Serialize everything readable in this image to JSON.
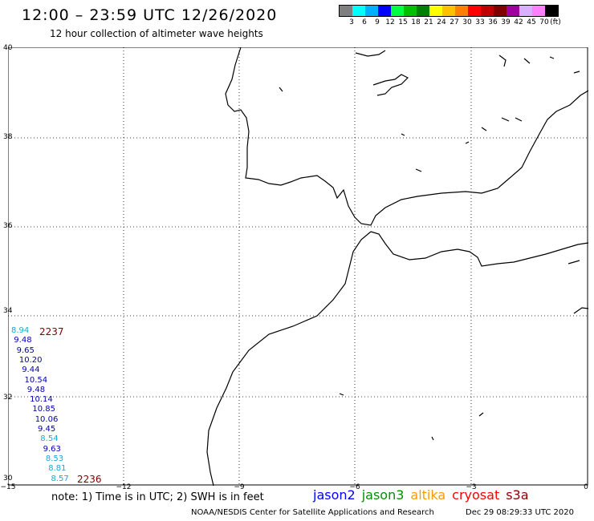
{
  "title": "12:00  –  23:59  UTC  12/26/2020",
  "subtitle": "12 hour collection of altimeter wave heights",
  "legend": {
    "unit": "(ft)",
    "colors": [
      "#7f7f7f",
      "#00ffff",
      "#00b0ff",
      "#0000ff",
      "#00ff40",
      "#00c000",
      "#008000",
      "#ffff00",
      "#ffc000",
      "#ff8000",
      "#ff0000",
      "#c00000",
      "#800000",
      "#a000a0",
      "#d8b0ff",
      "#ff80ff",
      "#000000"
    ],
    "labels": [
      "3",
      "6",
      "9",
      "12",
      "15",
      "18",
      "21",
      "24",
      "27",
      "30",
      "33",
      "36",
      "39",
      "42",
      "45",
      "70"
    ]
  },
  "axes": {
    "lat_labels": [
      "40",
      "38",
      "36",
      "34",
      "32",
      "30"
    ],
    "lon_labels": [
      "−15",
      "−12",
      "−9",
      "−6",
      "−3",
      "0"
    ]
  },
  "track": {
    "times": [
      "2237",
      "2236"
    ],
    "values": [
      {
        "v": "8.94",
        "c": "#1ea6d6"
      },
      {
        "v": "9.48",
        "c": "#0000b0"
      },
      {
        "v": "9.65",
        "c": "#0000b0"
      },
      {
        "v": "10.20",
        "c": "#0000b0"
      },
      {
        "v": "9.44",
        "c": "#0000b0"
      },
      {
        "v": "10.54",
        "c": "#0000b0"
      },
      {
        "v": "9.48",
        "c": "#0000b0"
      },
      {
        "v": "10.14",
        "c": "#0000b0"
      },
      {
        "v": "10.85",
        "c": "#0000b0"
      },
      {
        "v": "10.06",
        "c": "#0000b0"
      },
      {
        "v": "9.45",
        "c": "#0000b0"
      },
      {
        "v": "8.54",
        "c": "#1ea6d6"
      },
      {
        "v": "9.63",
        "c": "#0000b0"
      },
      {
        "v": "8.53",
        "c": "#1ea6d6"
      },
      {
        "v": "8.81",
        "c": "#1ea6d6"
      },
      {
        "v": "8.57",
        "c": "#1ea6d6"
      }
    ]
  },
  "note": "note:  1) Time is in UTC;  2) SWH is in feet",
  "satellites": [
    {
      "name": "jason2",
      "color": "#0000ff"
    },
    {
      "name": "jason3",
      "color": "#009000"
    },
    {
      "name": "altika",
      "color": "#ff9900"
    },
    {
      "name": "cryosat",
      "color": "#ff0000"
    },
    {
      "name": "s3a",
      "color": "#8b0000"
    }
  ],
  "credit": "NOAA/NESDIS Center for Satellite Applications and Research",
  "timestamp": "Dec 29 08:29:33 UTC 2020"
}
